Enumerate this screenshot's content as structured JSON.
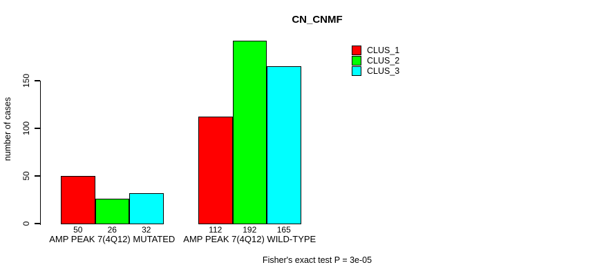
{
  "chart_data": {
    "type": "bar",
    "title": "CN_CNMF",
    "ylabel": "number of cases",
    "xlabel": "",
    "categories": [
      "AMP PEAK 7(4Q12) MUTATED",
      "AMP PEAK 7(4Q12) WILD-TYPE"
    ],
    "series": [
      {
        "name": "CLUS_1",
        "color": "#ff0000",
        "values": [
          50,
          112
        ]
      },
      {
        "name": "CLUS_2",
        "color": "#00ff00",
        "values": [
          26,
          192
        ]
      },
      {
        "name": "CLUS_3",
        "color": "#00ffff",
        "values": [
          32,
          165
        ]
      }
    ],
    "bar_value_labels": [
      [
        50,
        26,
        32
      ],
      [
        112,
        192,
        165
      ]
    ],
    "yticks": [
      0,
      50,
      100,
      150
    ],
    "ylim": [
      0,
      195
    ],
    "grid": false,
    "legend_position": "top-right",
    "annotation": "Fisher's exact test P = 3e-05"
  }
}
